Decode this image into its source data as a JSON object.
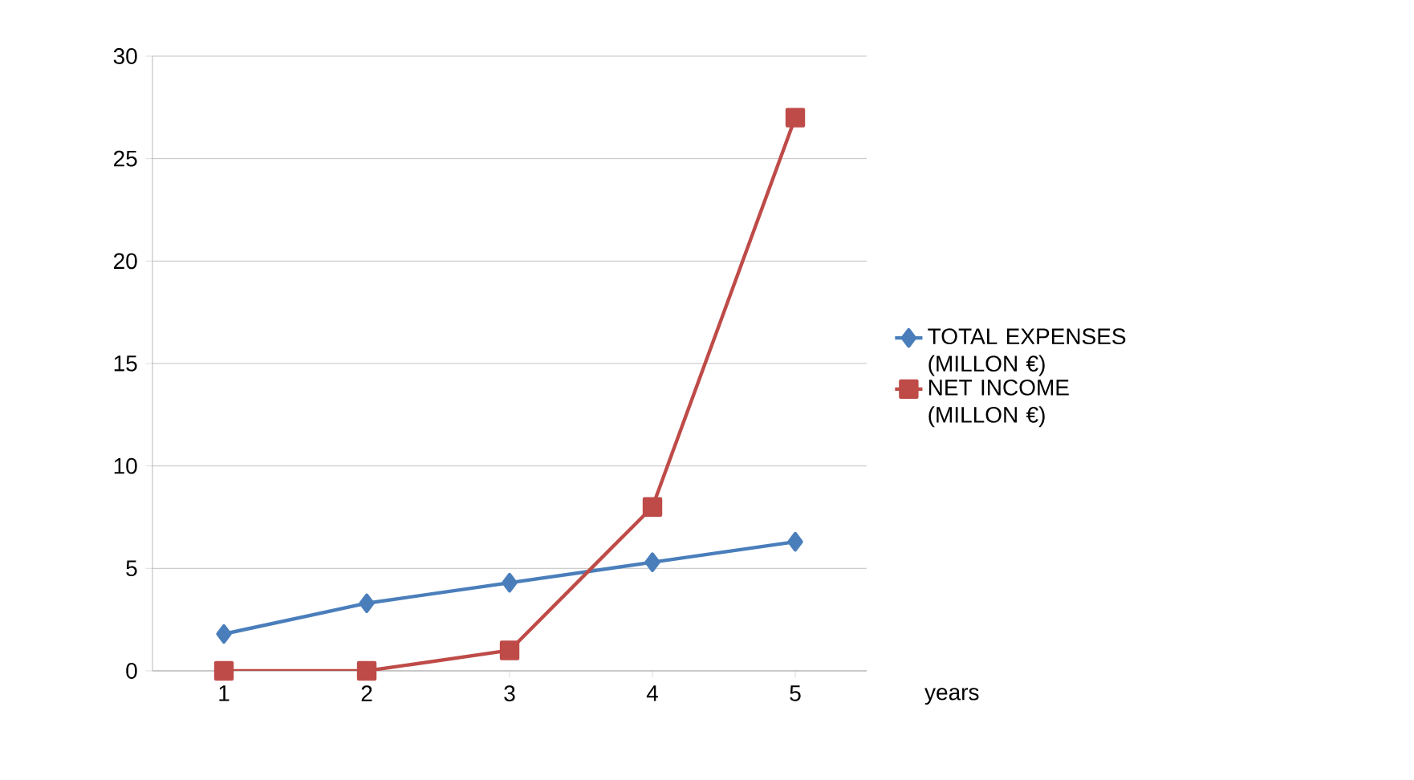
{
  "chart_data": {
    "type": "line",
    "categories": [
      "1",
      "2",
      "3",
      "4",
      "5"
    ],
    "xlabel": "years",
    "series": [
      {
        "name": "TOTAL  EXPENSES (MILLON €)",
        "color": "#4a7ebb",
        "marker": "diamond",
        "values": [
          1.8,
          3.3,
          4.3,
          5.3,
          6.3
        ]
      },
      {
        "name": "NET INCOME (MILLON €)",
        "color": "#be4b48",
        "marker": "square",
        "values": [
          0,
          0,
          1,
          8,
          27
        ]
      }
    ],
    "ylim": [
      0,
      30
    ],
    "yticks": [
      0,
      5,
      10,
      15,
      20,
      25,
      30
    ],
    "grid": "y",
    "legend": "right",
    "line_style": "solid"
  }
}
